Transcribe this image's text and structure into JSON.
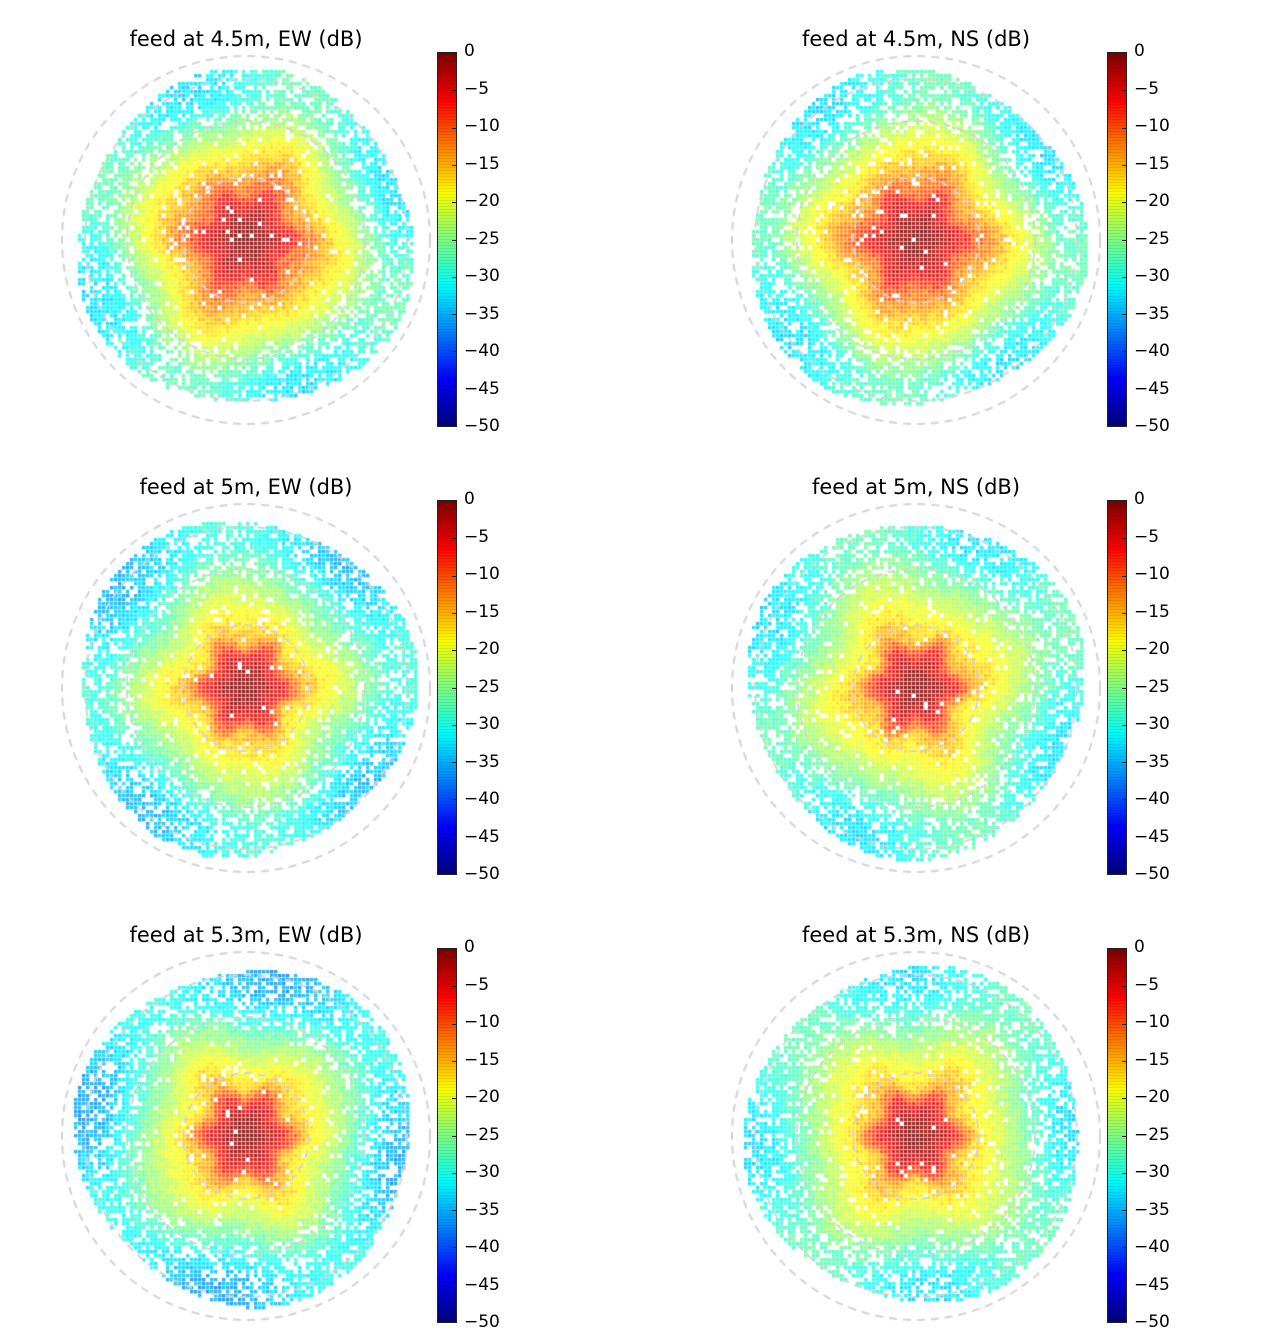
{
  "figure": {
    "colormap": "jet",
    "grid_color": "#d3d3d3",
    "colorbar": {
      "min": -50,
      "max": 0,
      "ticks": [
        0,
        -5,
        -10,
        -15,
        -20,
        -25,
        -30,
        -35,
        -40,
        -45,
        -50
      ],
      "tick_labels": [
        "0",
        "−5",
        "−10",
        "−15",
        "−20",
        "−25",
        "−30",
        "−35",
        "−40",
        "−45",
        "−50"
      ]
    }
  },
  "chart_data": [
    {
      "type": "heatmap",
      "projection": "polar",
      "title": "feed at 4.5m, EW (dB)",
      "feed_height_m": 4.5,
      "polarization": "EW",
      "units": "dB",
      "vmin": -50,
      "vmax": 0,
      "peak_db": 0,
      "main_lobe_edge_db": -10,
      "outer_level_db": -30,
      "grid": true,
      "radial_rings": 4,
      "legend": "colorbar-right",
      "colorbar_ticks": [
        0,
        -5,
        -10,
        -15,
        -20,
        -25,
        -30,
        -35,
        -40,
        -45,
        -50
      ]
    },
    {
      "type": "heatmap",
      "projection": "polar",
      "title": "feed at 4.5m, NS (dB)",
      "feed_height_m": 4.5,
      "polarization": "NS",
      "units": "dB",
      "vmin": -50,
      "vmax": 0,
      "peak_db": 0,
      "main_lobe_edge_db": -10,
      "outer_level_db": -30,
      "grid": true,
      "radial_rings": 4,
      "legend": "colorbar-right",
      "colorbar_ticks": [
        0,
        -5,
        -10,
        -15,
        -20,
        -25,
        -30,
        -35,
        -40,
        -45,
        -50
      ]
    },
    {
      "type": "heatmap",
      "projection": "polar",
      "title": "feed at 5m, EW (dB)",
      "feed_height_m": 5,
      "polarization": "EW",
      "units": "dB",
      "vmin": -50,
      "vmax": 0,
      "peak_db": 0,
      "main_lobe_edge_db": -15,
      "outer_level_db": -32,
      "grid": true,
      "radial_rings": 4,
      "legend": "colorbar-right",
      "colorbar_ticks": [
        0,
        -5,
        -10,
        -15,
        -20,
        -25,
        -30,
        -35,
        -40,
        -45,
        -50
      ]
    },
    {
      "type": "heatmap",
      "projection": "polar",
      "title": "feed at 5m, NS (dB)",
      "feed_height_m": 5,
      "polarization": "NS",
      "units": "dB",
      "vmin": -50,
      "vmax": 0,
      "peak_db": 0,
      "main_lobe_edge_db": -15,
      "outer_level_db": -30,
      "grid": true,
      "radial_rings": 4,
      "legend": "colorbar-right",
      "colorbar_ticks": [
        0,
        -5,
        -10,
        -15,
        -20,
        -25,
        -30,
        -35,
        -40,
        -45,
        -50
      ]
    },
    {
      "type": "heatmap",
      "projection": "polar",
      "title": "feed at 5.3m, EW (dB)",
      "feed_height_m": 5.3,
      "polarization": "EW",
      "units": "dB",
      "vmin": -50,
      "vmax": 0,
      "peak_db": 0,
      "main_lobe_edge_db": -15,
      "outer_level_db": -33,
      "grid": true,
      "radial_rings": 4,
      "legend": "colorbar-right",
      "colorbar_ticks": [
        0,
        -5,
        -10,
        -15,
        -20,
        -25,
        -30,
        -35,
        -40,
        -45,
        -50
      ]
    },
    {
      "type": "heatmap",
      "projection": "polar",
      "title": "feed at 5.3m, NS (dB)",
      "feed_height_m": 5.3,
      "polarization": "NS",
      "units": "dB",
      "vmin": -50,
      "vmax": 0,
      "peak_db": 0,
      "main_lobe_edge_db": -15,
      "outer_level_db": -30,
      "grid": true,
      "radial_rings": 4,
      "legend": "colorbar-right",
      "colorbar_ticks": [
        0,
        -5,
        -10,
        -15,
        -20,
        -25,
        -30,
        -35,
        -40,
        -45,
        -50
      ]
    }
  ]
}
